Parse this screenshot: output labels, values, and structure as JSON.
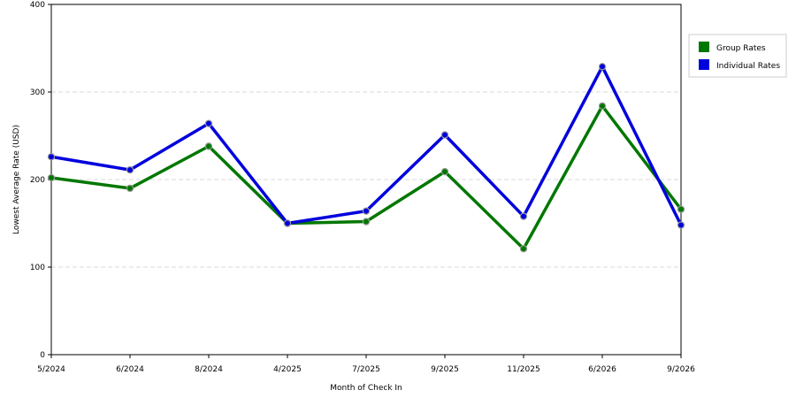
{
  "chart_data": {
    "type": "line",
    "xlabel": "Month of Check In",
    "ylabel": "Lowest Average Rate (USD)",
    "categories": [
      "5/2024",
      "6/2024",
      "8/2024",
      "4/2025",
      "7/2025",
      "9/2025",
      "11/2025",
      "6/2026",
      "9/2026"
    ],
    "ylim": [
      0,
      400
    ],
    "yticks": [
      0,
      100,
      200,
      300,
      400
    ],
    "grid": "horizontal dashed",
    "legend_position": "right",
    "series": [
      {
        "name": "Group Rates",
        "color": "#007700",
        "values": [
          202,
          190,
          238,
          150,
          152,
          209,
          121,
          284,
          166
        ]
      },
      {
        "name": "Individual Rates",
        "color": "#0000dd",
        "values": [
          226,
          211,
          264,
          150,
          164,
          251,
          158,
          329,
          148
        ]
      }
    ]
  }
}
